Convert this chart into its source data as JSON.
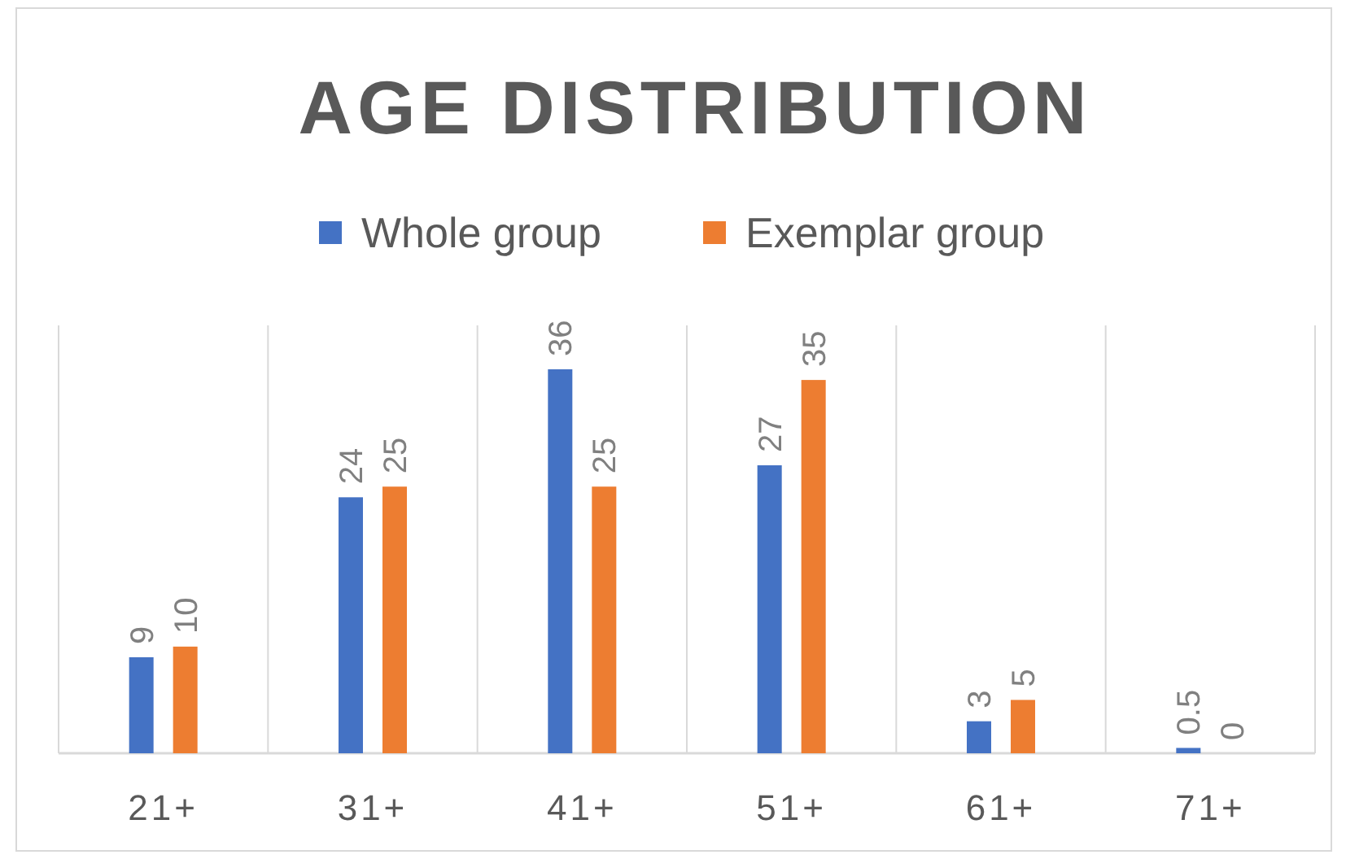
{
  "chart_data": {
    "type": "bar",
    "title": "AGE DISTRIBUTION",
    "categories": [
      "21+",
      "31+",
      "41+",
      "51+",
      "61+",
      "71+"
    ],
    "series": [
      {
        "name": "Whole group",
        "color": "#4472c4",
        "values": [
          9,
          24,
          36,
          27,
          3,
          0.5
        ]
      },
      {
        "name": "Exemplar group",
        "color": "#ed7d31",
        "values": [
          10,
          25,
          25,
          35,
          5,
          0
        ]
      }
    ],
    "data_labels": true,
    "grid": "x",
    "legend": "top"
  }
}
